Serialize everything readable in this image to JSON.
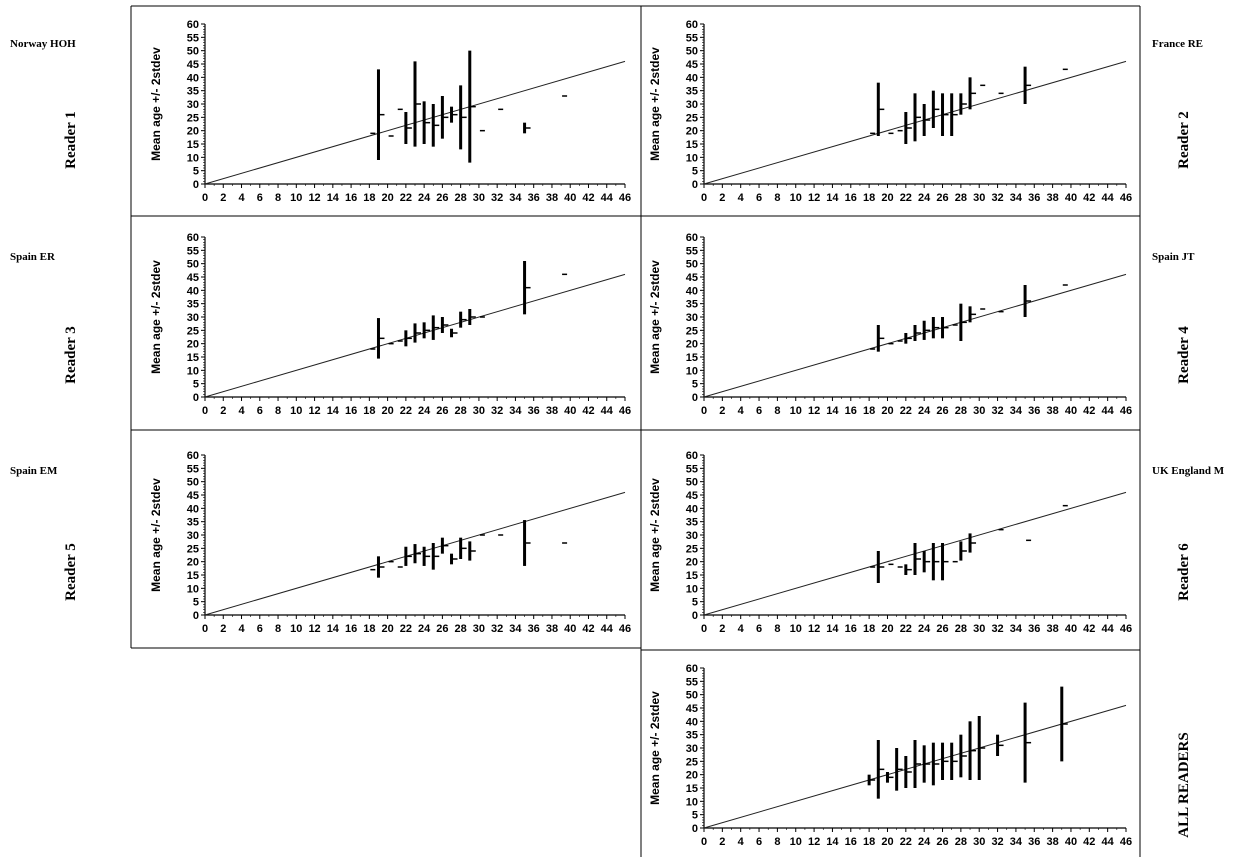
{
  "ylabel": "Mean age +/- 2stdev",
  "axis": {
    "x_ticks": [
      0,
      2,
      4,
      6,
      8,
      10,
      12,
      14,
      16,
      18,
      20,
      22,
      24,
      26,
      28,
      30,
      32,
      34,
      36,
      38,
      40,
      42,
      44,
      46
    ],
    "y_ticks": [
      0,
      5,
      10,
      15,
      20,
      25,
      30,
      35,
      40,
      45,
      50,
      55,
      60
    ],
    "xlim": [
      0,
      46
    ],
    "ylim": [
      0,
      60
    ]
  },
  "panels": [
    {
      "tag": "Norway HOH",
      "reader_label": "Reader 1"
    },
    {
      "tag": "France  RE",
      "reader_label": "Reader 2"
    },
    {
      "tag": "Spain ER",
      "reader_label": "Reader 3"
    },
    {
      "tag": "Spain  JT",
      "reader_label": "Reader 4"
    },
    {
      "tag": "Spain EM",
      "reader_label": "Reader 5"
    },
    {
      "tag": "UK England M",
      "reader_label": "Reader 6"
    },
    {
      "tag": "",
      "reader_label": "ALL READERS"
    }
  ],
  "chart_data": [
    {
      "type": "scatter",
      "ylabel": "Mean age +/- 2stdev",
      "xlim": [
        0,
        46
      ],
      "ylim": [
        0,
        60
      ],
      "reference_line": "y = x",
      "points": [
        {
          "x": 18,
          "mean": 19,
          "sd": 0
        },
        {
          "x": 19,
          "mean": 26,
          "sd": 8.5
        },
        {
          "x": 20,
          "mean": 18,
          "sd": 0
        },
        {
          "x": 21,
          "mean": 28,
          "sd": 0
        },
        {
          "x": 22,
          "mean": 21,
          "sd": 3
        },
        {
          "x": 23,
          "mean": 30,
          "sd": 8
        },
        {
          "x": 24,
          "mean": 23,
          "sd": 4
        },
        {
          "x": 25,
          "mean": 22,
          "sd": 4
        },
        {
          "x": 26,
          "mean": 25,
          "sd": 4
        },
        {
          "x": 27,
          "mean": 26,
          "sd": 1.5
        },
        {
          "x": 28,
          "mean": 25,
          "sd": 6
        },
        {
          "x": 29,
          "mean": 29,
          "sd": 10.5
        },
        {
          "x": 30,
          "mean": 20,
          "sd": 0
        },
        {
          "x": 32,
          "mean": 28,
          "sd": 0
        },
        {
          "x": 35,
          "mean": 21,
          "sd": 1
        },
        {
          "x": 39,
          "mean": 33,
          "sd": 0
        }
      ]
    },
    {
      "type": "scatter",
      "ylabel": "Mean age +/- 2stdev",
      "xlim": [
        0,
        46
      ],
      "ylim": [
        0,
        60
      ],
      "reference_line": "y = x",
      "points": [
        {
          "x": 18,
          "mean": 19,
          "sd": 0
        },
        {
          "x": 19,
          "mean": 28,
          "sd": 5
        },
        {
          "x": 20,
          "mean": 19,
          "sd": 0
        },
        {
          "x": 21,
          "mean": 20,
          "sd": 0
        },
        {
          "x": 22,
          "mean": 21,
          "sd": 3
        },
        {
          "x": 23,
          "mean": 25,
          "sd": 4.5
        },
        {
          "x": 24,
          "mean": 24,
          "sd": 3
        },
        {
          "x": 25,
          "mean": 28,
          "sd": 3.5
        },
        {
          "x": 26,
          "mean": 26,
          "sd": 4
        },
        {
          "x": 27,
          "mean": 26,
          "sd": 4
        },
        {
          "x": 28,
          "mean": 30,
          "sd": 2
        },
        {
          "x": 29,
          "mean": 34,
          "sd": 3
        },
        {
          "x": 30,
          "mean": 37,
          "sd": 0
        },
        {
          "x": 32,
          "mean": 34,
          "sd": 0
        },
        {
          "x": 35,
          "mean": 37,
          "sd": 3.5
        },
        {
          "x": 39,
          "mean": 43,
          "sd": 0
        }
      ]
    },
    {
      "type": "scatter",
      "ylabel": "Mean age +/- 2stdev",
      "xlim": [
        0,
        46
      ],
      "ylim": [
        0,
        60
      ],
      "reference_line": "y = x",
      "points": [
        {
          "x": 18,
          "mean": 18,
          "sd": 0
        },
        {
          "x": 19,
          "mean": 22,
          "sd": 3.8
        },
        {
          "x": 20,
          "mean": 20,
          "sd": 0
        },
        {
          "x": 21,
          "mean": 21,
          "sd": 0
        },
        {
          "x": 22,
          "mean": 22,
          "sd": 1.5
        },
        {
          "x": 23,
          "mean": 24,
          "sd": 1.8
        },
        {
          "x": 24,
          "mean": 25,
          "sd": 1.5
        },
        {
          "x": 25,
          "mean": 26,
          "sd": 2.3
        },
        {
          "x": 26,
          "mean": 27,
          "sd": 1.5
        },
        {
          "x": 27,
          "mean": 24,
          "sd": 0.8
        },
        {
          "x": 28,
          "mean": 29,
          "sd": 1.5
        },
        {
          "x": 29,
          "mean": 30,
          "sd": 1.5
        },
        {
          "x": 30,
          "mean": 30,
          "sd": 0
        },
        {
          "x": 35,
          "mean": 41,
          "sd": 5
        },
        {
          "x": 39,
          "mean": 46,
          "sd": 0
        }
      ]
    },
    {
      "type": "scatter",
      "ylabel": "Mean age +/- 2stdev",
      "xlim": [
        0,
        46
      ],
      "ylim": [
        0,
        60
      ],
      "reference_line": "y = x",
      "points": [
        {
          "x": 18,
          "mean": 18,
          "sd": 0
        },
        {
          "x": 19,
          "mean": 22,
          "sd": 2.5
        },
        {
          "x": 20,
          "mean": 20,
          "sd": 0
        },
        {
          "x": 21,
          "mean": 21,
          "sd": 0
        },
        {
          "x": 22,
          "mean": 22,
          "sd": 1
        },
        {
          "x": 23,
          "mean": 24,
          "sd": 1.5
        },
        {
          "x": 24,
          "mean": 25,
          "sd": 1.8
        },
        {
          "x": 25,
          "mean": 26,
          "sd": 2
        },
        {
          "x": 26,
          "mean": 26,
          "sd": 2
        },
        {
          "x": 27,
          "mean": 27,
          "sd": 0
        },
        {
          "x": 28,
          "mean": 28,
          "sd": 3.5
        },
        {
          "x": 29,
          "mean": 31,
          "sd": 1.5
        },
        {
          "x": 30,
          "mean": 33,
          "sd": 0
        },
        {
          "x": 32,
          "mean": 32,
          "sd": 0
        },
        {
          "x": 35,
          "mean": 36,
          "sd": 3
        },
        {
          "x": 39,
          "mean": 42,
          "sd": 0
        }
      ]
    },
    {
      "type": "scatter",
      "ylabel": "Mean age +/- 2stdev",
      "xlim": [
        0,
        46
      ],
      "ylim": [
        0,
        60
      ],
      "reference_line": "y = x",
      "points": [
        {
          "x": 18,
          "mean": 17,
          "sd": 0
        },
        {
          "x": 19,
          "mean": 18,
          "sd": 2
        },
        {
          "x": 20,
          "mean": 20,
          "sd": 0
        },
        {
          "x": 21,
          "mean": 18,
          "sd": 0
        },
        {
          "x": 22,
          "mean": 22,
          "sd": 1.8
        },
        {
          "x": 23,
          "mean": 23,
          "sd": 1.8
        },
        {
          "x": 24,
          "mean": 22,
          "sd": 1.8
        },
        {
          "x": 25,
          "mean": 22,
          "sd": 2.5
        },
        {
          "x": 26,
          "mean": 26,
          "sd": 1.5
        },
        {
          "x": 27,
          "mean": 21,
          "sd": 1
        },
        {
          "x": 28,
          "mean": 25,
          "sd": 2
        },
        {
          "x": 29,
          "mean": 24,
          "sd": 1.8
        },
        {
          "x": 30,
          "mean": 30,
          "sd": 0
        },
        {
          "x": 32,
          "mean": 30,
          "sd": 0
        },
        {
          "x": 35,
          "mean": 27,
          "sd": 4.3
        },
        {
          "x": 39,
          "mean": 27,
          "sd": 0
        }
      ]
    },
    {
      "type": "scatter",
      "ylabel": "Mean age +/- 2stdev",
      "xlim": [
        0,
        46
      ],
      "ylim": [
        0,
        60
      ],
      "reference_line": "y = x",
      "points": [
        {
          "x": 18,
          "mean": 18,
          "sd": 0
        },
        {
          "x": 19,
          "mean": 18,
          "sd": 3
        },
        {
          "x": 20,
          "mean": 19,
          "sd": 0
        },
        {
          "x": 21,
          "mean": 18,
          "sd": 0
        },
        {
          "x": 22,
          "mean": 17,
          "sd": 1
        },
        {
          "x": 23,
          "mean": 21,
          "sd": 3
        },
        {
          "x": 24,
          "mean": 20,
          "sd": 2
        },
        {
          "x": 25,
          "mean": 20,
          "sd": 3.5
        },
        {
          "x": 26,
          "mean": 20,
          "sd": 3.5
        },
        {
          "x": 27,
          "mean": 20,
          "sd": 0
        },
        {
          "x": 28,
          "mean": 24,
          "sd": 1.8
        },
        {
          "x": 29,
          "mean": 27,
          "sd": 1.8
        },
        {
          "x": 32,
          "mean": 32,
          "sd": 0
        },
        {
          "x": 35,
          "mean": 28,
          "sd": 0
        },
        {
          "x": 39,
          "mean": 41,
          "sd": 0
        }
      ]
    },
    {
      "type": "scatter",
      "ylabel": "Mean age +/- 2stdev",
      "xlim": [
        0,
        46
      ],
      "ylim": [
        0,
        60
      ],
      "reference_line": "y = x",
      "points": [
        {
          "x": 18,
          "mean": 18,
          "sd": 1
        },
        {
          "x": 19,
          "mean": 22,
          "sd": 5.5
        },
        {
          "x": 20,
          "mean": 19,
          "sd": 1
        },
        {
          "x": 21,
          "mean": 22,
          "sd": 4
        },
        {
          "x": 22,
          "mean": 21,
          "sd": 3
        },
        {
          "x": 23,
          "mean": 24,
          "sd": 4.5
        },
        {
          "x": 24,
          "mean": 24,
          "sd": 3.5
        },
        {
          "x": 25,
          "mean": 24,
          "sd": 4
        },
        {
          "x": 26,
          "mean": 25,
          "sd": 3.5
        },
        {
          "x": 27,
          "mean": 25,
          "sd": 3.5
        },
        {
          "x": 28,
          "mean": 27,
          "sd": 4
        },
        {
          "x": 29,
          "mean": 29,
          "sd": 5.5
        },
        {
          "x": 30,
          "mean": 30,
          "sd": 6
        },
        {
          "x": 32,
          "mean": 31,
          "sd": 2
        },
        {
          "x": 35,
          "mean": 32,
          "sd": 7.5
        },
        {
          "x": 39,
          "mean": 39,
          "sd": 7
        }
      ]
    }
  ]
}
